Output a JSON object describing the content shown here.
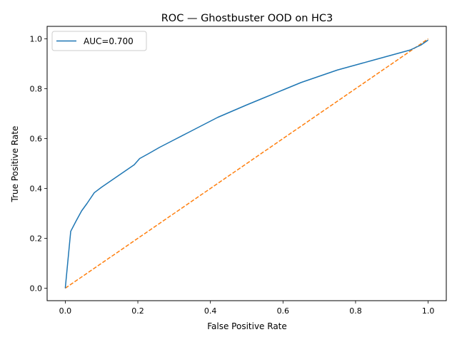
{
  "chart_data": {
    "type": "line",
    "title": "ROC — Ghostbuster OOD on HC3",
    "xlabel": "False Positive Rate",
    "ylabel": "True Positive Rate",
    "xlim": [
      -0.05,
      1.05
    ],
    "ylim": [
      -0.05,
      1.05
    ],
    "xticks": [
      0.0,
      0.2,
      0.4,
      0.6,
      0.8,
      1.0
    ],
    "yticks": [
      0.0,
      0.2,
      0.4,
      0.6,
      0.8,
      1.0
    ],
    "xtick_labels": [
      "0.0",
      "0.2",
      "0.4",
      "0.6",
      "0.8",
      "1.0"
    ],
    "ytick_labels": [
      "0.0",
      "0.2",
      "0.4",
      "0.6",
      "0.8",
      "1.0"
    ],
    "grid": false,
    "legend_position": "top-left",
    "series": [
      {
        "name": "AUC=0.700",
        "color": "#1f77b4",
        "style": "solid",
        "x": [
          0.0,
          0.015,
          0.03,
          0.045,
          0.06,
          0.08,
          0.1,
          0.13,
          0.16,
          0.19,
          0.205,
          0.23,
          0.26,
          0.3,
          0.34,
          0.38,
          0.42,
          0.46,
          0.5,
          0.55,
          0.6,
          0.65,
          0.7,
          0.75,
          0.8,
          0.85,
          0.9,
          0.95,
          0.98,
          1.0
        ],
        "y": [
          0.0,
          0.228,
          0.27,
          0.31,
          0.34,
          0.383,
          0.405,
          0.435,
          0.465,
          0.495,
          0.52,
          0.54,
          0.565,
          0.595,
          0.625,
          0.655,
          0.685,
          0.71,
          0.735,
          0.765,
          0.795,
          0.825,
          0.85,
          0.875,
          0.895,
          0.915,
          0.935,
          0.955,
          0.975,
          0.995
        ]
      },
      {
        "name": "",
        "color": "#ff7f0e",
        "style": "dashed",
        "x": [
          0.0,
          1.0
        ],
        "y": [
          0.0,
          1.0
        ]
      }
    ]
  }
}
